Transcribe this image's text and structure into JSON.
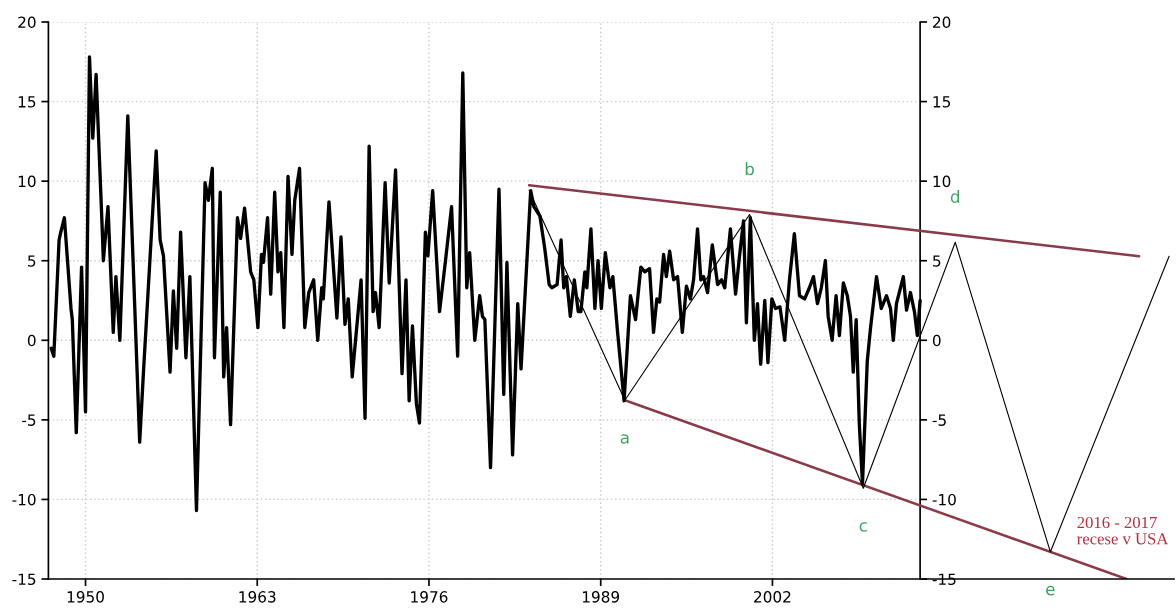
{
  "chart_data": {
    "type": "line",
    "xlim": [
      1947.19,
      2032.4
    ],
    "ylim": [
      -15,
      20
    ],
    "xticks": [
      1950,
      1963,
      1976,
      1989,
      2002
    ],
    "yticks": [
      -15,
      -10,
      -5,
      0,
      5,
      10,
      15,
      20
    ],
    "y2lim": [
      -15,
      20
    ],
    "y2ticks": [
      -15,
      -10,
      -5,
      0,
      5,
      10,
      15,
      20
    ],
    "grid": true,
    "series": [
      {
        "color": "#000000",
        "x": [
          1947.4,
          1947.6,
          1948.0,
          1948.1,
          1948.4,
          1948.9,
          1949.0,
          1949.3,
          1949.7,
          1950.0,
          1950.3,
          1950.55,
          1950.8,
          1951.25,
          1951.35,
          1951.7,
          1952.1,
          1952.3,
          1952.6,
          1953.2,
          1954.1,
          1954.4,
          1955.35,
          1955.65,
          1955.9,
          1956.4,
          1956.65,
          1956.9,
          1957.2,
          1957.6,
          1957.9,
          1958.4,
          1959.05,
          1959.3,
          1959.6,
          1959.76,
          1960.2,
          1960.46,
          1960.68,
          1960.98,
          1961.5,
          1961.74,
          1962.04,
          1962.5,
          1962.74,
          1963.05,
          1963.32,
          1963.47,
          1963.78,
          1964.02,
          1964.32,
          1964.57,
          1964.78,
          1965.02,
          1965.33,
          1965.63,
          1965.84,
          1966.2,
          1966.6,
          1966.9,
          1967.27,
          1967.58,
          1967.88,
          1968.0,
          1968.43,
          1969.03,
          1969.34,
          1969.64,
          1969.89,
          1970.19,
          1970.86,
          1971.16,
          1971.47,
          1971.77,
          1971.95,
          1972.23,
          1972.68,
          1972.99,
          1973.47,
          1973.96,
          1974.26,
          1974.5,
          1974.75,
          1975.05,
          1975.28,
          1975.73,
          1975.92,
          1976.28,
          1976.8,
          1977.25,
          1977.71,
          1978.17,
          1978.56,
          1978.86,
          1979.08,
          1979.47,
          1979.84,
          1980.05,
          1980.23,
          1980.66,
          1981.3,
          1981.66,
          1981.9,
          1982.33,
          1982.72,
          1982.97,
          1983.7,
          1983.94,
          1984.4,
          1984.76,
          1985.1,
          1985.3,
          1985.7,
          1986.0,
          1986.2,
          1986.4,
          1986.7,
          1987.0,
          1987.3,
          1987.5,
          1987.8,
          1987.95,
          1988.26,
          1988.56,
          1988.8,
          1989.05,
          1989.35,
          1989.7,
          1989.92,
          1990.28,
          1990.77,
          1991.25,
          1991.64,
          1992.04,
          1992.34,
          1992.7,
          1993.0,
          1993.25,
          1993.46,
          1993.76,
          1993.97,
          1994.22,
          1994.52,
          1994.82,
          1995.18,
          1995.49,
          1995.79,
          1996.03,
          1996.33,
          1996.58,
          1996.79,
          1997.09,
          1997.45,
          1997.85,
          1998.15,
          1998.39,
          1998.82,
          1999.21,
          1999.51,
          1999.81,
          2000.03,
          2000.33,
          2000.63,
          2000.87,
          2001.11,
          2001.42,
          2001.66,
          2001.96,
          2002.23,
          2002.57,
          2002.93,
          2003.29,
          2003.66,
          2004.05,
          2004.44,
          2004.8,
          2005.11,
          2005.41,
          2005.7,
          2006.01,
          2006.22,
          2006.52,
          2006.82,
          2007.07,
          2007.37,
          2007.67,
          2007.91,
          2008.12,
          2008.34,
          2008.58,
          2008.82,
          2009.18,
          2009.43,
          2009.88,
          2010.24,
          2010.64,
          2010.94,
          2011.15,
          2011.39,
          2011.91,
          2012.15,
          2012.45,
          2012.75,
          2012.97,
          2013.18
        ],
        "values": [
          -0.5,
          -1.0,
          6.3,
          6.7,
          7.7,
          2.0,
          1.3,
          -5.8,
          4.6,
          -4.5,
          17.8,
          12.7,
          16.7,
          7.3,
          5.0,
          8.4,
          0.5,
          4.0,
          0.0,
          14.1,
          -6.4,
          -1.8,
          11.9,
          6.3,
          5.3,
          -2.0,
          3.1,
          -0.5,
          6.8,
          -1.1,
          4.0,
          -10.7,
          9.9,
          8.8,
          10.8,
          -1.1,
          9.3,
          -2.3,
          0.8,
          -5.3,
          7.7,
          6.4,
          8.3,
          4.3,
          3.8,
          0.8,
          5.4,
          4.9,
          7.7,
          2.9,
          9.3,
          4.3,
          5.5,
          0.8,
          10.3,
          5.4,
          8.8,
          10.8,
          0.8,
          3.0,
          3.8,
          0.0,
          3.3,
          2.6,
          8.7,
          1.4,
          6.5,
          1.0,
          2.6,
          -2.3,
          3.8,
          -4.9,
          12.2,
          1.8,
          3.0,
          0.8,
          9.9,
          3.6,
          10.7,
          -2.1,
          3.8,
          -3.8,
          0.9,
          -4.0,
          -5.2,
          6.8,
          5.3,
          9.4,
          1.8,
          5.0,
          8.4,
          -1.0,
          16.8,
          3.3,
          5.5,
          0.0,
          2.8,
          1.5,
          1.3,
          -8.0,
          9.5,
          -3.4,
          4.9,
          -7.2,
          2.3,
          -1.8,
          9.4,
          8.4,
          7.8,
          5.8,
          3.5,
          3.3,
          3.5,
          6.3,
          3.3,
          4.0,
          1.5,
          3.8,
          1.8,
          1.8,
          4.3,
          3.3,
          7.0,
          2.0,
          5.0,
          2.0,
          5.5,
          3.3,
          4.0,
          0.5,
          -3.8,
          2.8,
          1.3,
          4.6,
          4.3,
          4.5,
          0.5,
          2.6,
          2.4,
          5.4,
          4.0,
          5.6,
          3.8,
          4.0,
          0.5,
          3.4,
          2.6,
          3.8,
          7.0,
          3.8,
          4.0,
          3.0,
          6.0,
          3.5,
          3.8,
          3.3,
          7.0,
          2.9,
          5.3,
          7.5,
          1.1,
          7.7,
          0.0,
          2.3,
          -1.5,
          2.5,
          -1.4,
          2.6,
          2.0,
          2.1,
          0.0,
          3.8,
          6.7,
          2.8,
          2.6,
          3.3,
          4.0,
          2.3,
          3.3,
          5.0,
          1.5,
          0.0,
          2.8,
          0.3,
          3.6,
          2.8,
          1.5,
          -2.0,
          1.3,
          -5.3,
          -9.0,
          -1.3,
          0.8,
          4.0,
          2.0,
          2.8,
          2.0,
          0.0,
          2.3,
          4.0,
          1.9,
          3.0,
          1.8,
          0.3,
          2.5
        ]
      },
      {
        "color": "#8b3a4a",
        "x": [
          1983.58,
          2029.76
        ],
        "values": [
          9.74,
          5.28
        ]
      },
      {
        "color": "#8b3a4a",
        "x": [
          1990.83,
          2028.8
        ],
        "values": [
          -3.77,
          -15.0
        ]
      },
      {
        "color": "#000000",
        "x": [
          1983.58,
          1990.83,
          2000.27,
          2008.88,
          2015.84,
          2023.04,
          2032.03
        ],
        "values": [
          9.43,
          -3.77,
          7.9,
          -9.3,
          6.16,
          -13.3,
          5.28
        ]
      }
    ],
    "annotations": [
      {
        "text": "a",
        "x": 1990.83,
        "y": -3.77
      },
      {
        "text": "b",
        "x": 2000.27,
        "y": 7.9
      },
      {
        "text": "c",
        "x": 2008.88,
        "y": -9.3
      },
      {
        "text": "d",
        "x": 2015.84,
        "y": 6.16
      },
      {
        "text": "e",
        "x": 2023.04,
        "y": -13.3
      },
      {
        "text": "2016 - 2017\nrecese v USA",
        "x": 2023.04,
        "y": -13.3
      }
    ]
  }
}
